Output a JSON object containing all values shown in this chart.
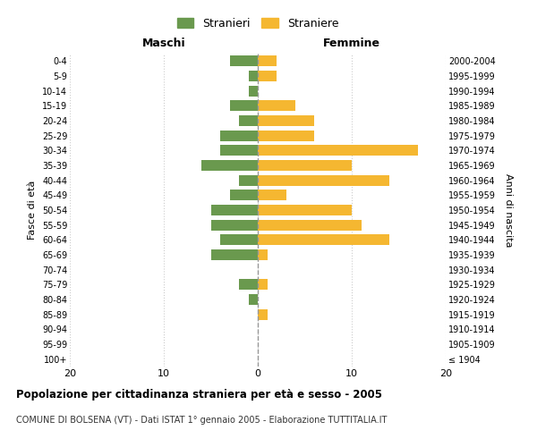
{
  "age_groups": [
    "100+",
    "95-99",
    "90-94",
    "85-89",
    "80-84",
    "75-79",
    "70-74",
    "65-69",
    "60-64",
    "55-59",
    "50-54",
    "45-49",
    "40-44",
    "35-39",
    "30-34",
    "25-29",
    "20-24",
    "15-19",
    "10-14",
    "5-9",
    "0-4"
  ],
  "birth_years": [
    "≤ 1904",
    "1905-1909",
    "1910-1914",
    "1915-1919",
    "1920-1924",
    "1925-1929",
    "1930-1934",
    "1935-1939",
    "1940-1944",
    "1945-1949",
    "1950-1954",
    "1955-1959",
    "1960-1964",
    "1965-1969",
    "1970-1974",
    "1975-1979",
    "1980-1984",
    "1985-1989",
    "1990-1994",
    "1995-1999",
    "2000-2004"
  ],
  "maschi": [
    0,
    0,
    0,
    0,
    1,
    2,
    0,
    5,
    4,
    5,
    5,
    3,
    2,
    6,
    4,
    4,
    2,
    3,
    1,
    1,
    3
  ],
  "femmine": [
    0,
    0,
    0,
    1,
    0,
    1,
    0,
    1,
    14,
    11,
    10,
    3,
    14,
    10,
    17,
    6,
    6,
    4,
    0,
    2,
    2
  ],
  "maschi_color": "#6a994e",
  "femmine_color": "#f5b731",
  "background_color": "#ffffff",
  "grid_color": "#cccccc",
  "title": "Popolazione per cittadinanza straniera per età e sesso - 2005",
  "subtitle": "COMUNE DI BOLSENA (VT) - Dati ISTAT 1° gennaio 2005 - Elaborazione TUTTITALIA.IT",
  "xlabel_left": "Maschi",
  "xlabel_right": "Femmine",
  "ylabel": "Fasce di età",
  "ylabel_right": "Anni di nascita",
  "xlim": 20,
  "legend_stranieri": "Stranieri",
  "legend_straniere": "Straniere"
}
